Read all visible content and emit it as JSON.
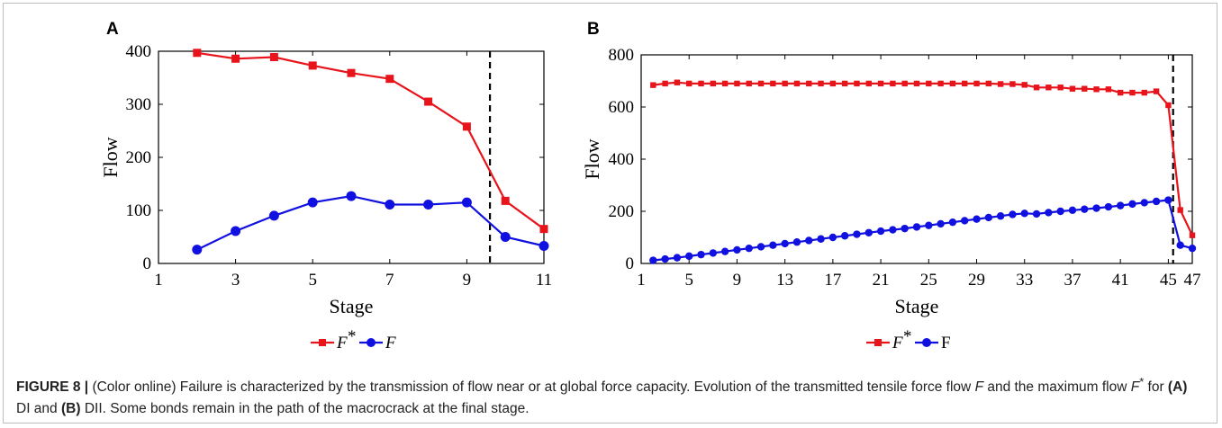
{
  "chart_data": [
    {
      "panel": "A",
      "type": "line",
      "xlabel": "Stage",
      "ylabel": "Flow",
      "xlim": [
        1,
        11
      ],
      "ylim": [
        0,
        400
      ],
      "xticks": [
        1,
        3,
        5,
        7,
        9,
        11
      ],
      "yticks": [
        0,
        100,
        200,
        300,
        400
      ],
      "vline": 9.6,
      "legend_position": "bottom-center",
      "grid": false,
      "series": [
        {
          "name": "F*",
          "marker": "square",
          "color": "#e8141c",
          "x": [
            2,
            3,
            4,
            5,
            6,
            7,
            8,
            9,
            10,
            11
          ],
          "y": [
            397,
            386,
            389,
            373,
            359,
            348,
            305,
            258,
            118,
            65
          ]
        },
        {
          "name": "F",
          "marker": "circle",
          "color": "#1010e0",
          "x": [
            2,
            3,
            4,
            5,
            6,
            7,
            8,
            9,
            10,
            11
          ],
          "y": [
            26,
            61,
            90,
            115,
            127,
            111,
            111,
            115,
            50,
            33
          ]
        }
      ]
    },
    {
      "panel": "B",
      "type": "line",
      "xlabel": "Stage",
      "ylabel": "Flow",
      "xlim": [
        1,
        47
      ],
      "ylim": [
        0,
        800
      ],
      "xticks": [
        1,
        5,
        9,
        13,
        17,
        21,
        25,
        29,
        33,
        37,
        41,
        45,
        47
      ],
      "xtick_labels": [
        "1",
        "5",
        "9",
        "13",
        "17",
        "21",
        "25",
        "29",
        "33",
        "37",
        "41",
        "45",
        "47"
      ],
      "yticks": [
        0,
        200,
        400,
        600,
        800
      ],
      "vline": 45.4,
      "legend_position": "bottom-center",
      "grid": false,
      "series": [
        {
          "name": "F*",
          "marker": "square",
          "color": "#e8141c",
          "x": [
            2,
            3,
            4,
            5,
            6,
            7,
            8,
            9,
            10,
            11,
            12,
            13,
            14,
            15,
            16,
            17,
            18,
            19,
            20,
            21,
            22,
            23,
            24,
            25,
            26,
            27,
            28,
            29,
            30,
            31,
            32,
            33,
            34,
            35,
            36,
            37,
            38,
            39,
            40,
            41,
            42,
            43,
            44,
            45,
            46,
            47
          ],
          "y": [
            684,
            690,
            694,
            690,
            690,
            690,
            690,
            690,
            690,
            690,
            690,
            690,
            690,
            690,
            690,
            690,
            690,
            690,
            690,
            690,
            690,
            690,
            690,
            690,
            690,
            690,
            690,
            690,
            690,
            688,
            688,
            685,
            675,
            675,
            675,
            670,
            670,
            668,
            668,
            655,
            655,
            655,
            660,
            607,
            205,
            108
          ]
        },
        {
          "name": "F",
          "marker": "circle",
          "color": "#1010e0",
          "x": [
            2,
            3,
            4,
            5,
            6,
            7,
            8,
            9,
            10,
            11,
            12,
            13,
            14,
            15,
            16,
            17,
            18,
            19,
            20,
            21,
            22,
            23,
            24,
            25,
            26,
            27,
            28,
            29,
            30,
            31,
            32,
            33,
            34,
            35,
            36,
            37,
            38,
            39,
            40,
            41,
            42,
            43,
            44,
            45,
            46,
            47
          ],
          "y": [
            12,
            17,
            22,
            28,
            34,
            40,
            46,
            52,
            58,
            64,
            70,
            76,
            82,
            88,
            94,
            100,
            106,
            112,
            118,
            124,
            129,
            134,
            140,
            146,
            152,
            158,
            164,
            170,
            176,
            182,
            188,
            192,
            190,
            195,
            200,
            204,
            208,
            212,
            217,
            222,
            228,
            233,
            238,
            243,
            70,
            58
          ]
        }
      ]
    }
  ],
  "legend": {
    "A": {
      "fstar": "F",
      "fstar_sup": "*",
      "f": "F"
    },
    "B": {
      "fstar": "F",
      "fstar_sup": "*",
      "f": "F"
    }
  },
  "caption": {
    "figure_label": "FIGURE 8 |",
    "text_1": " (Color online) Failure is characterized by the transmission of flow near or at global force capacity. Evolution of the transmitted tensile force flow ",
    "var_f": "F",
    "text_2": " and the maximum flow ",
    "var_fstar": "F",
    "var_fstar_sup": "*",
    "text_3": " for ",
    "ref_a": "(A)",
    "text_4": " DI and ",
    "ref_b": "(B)",
    "text_5": " DII. Some bonds remain in the path of the macrocrack at the final stage."
  }
}
